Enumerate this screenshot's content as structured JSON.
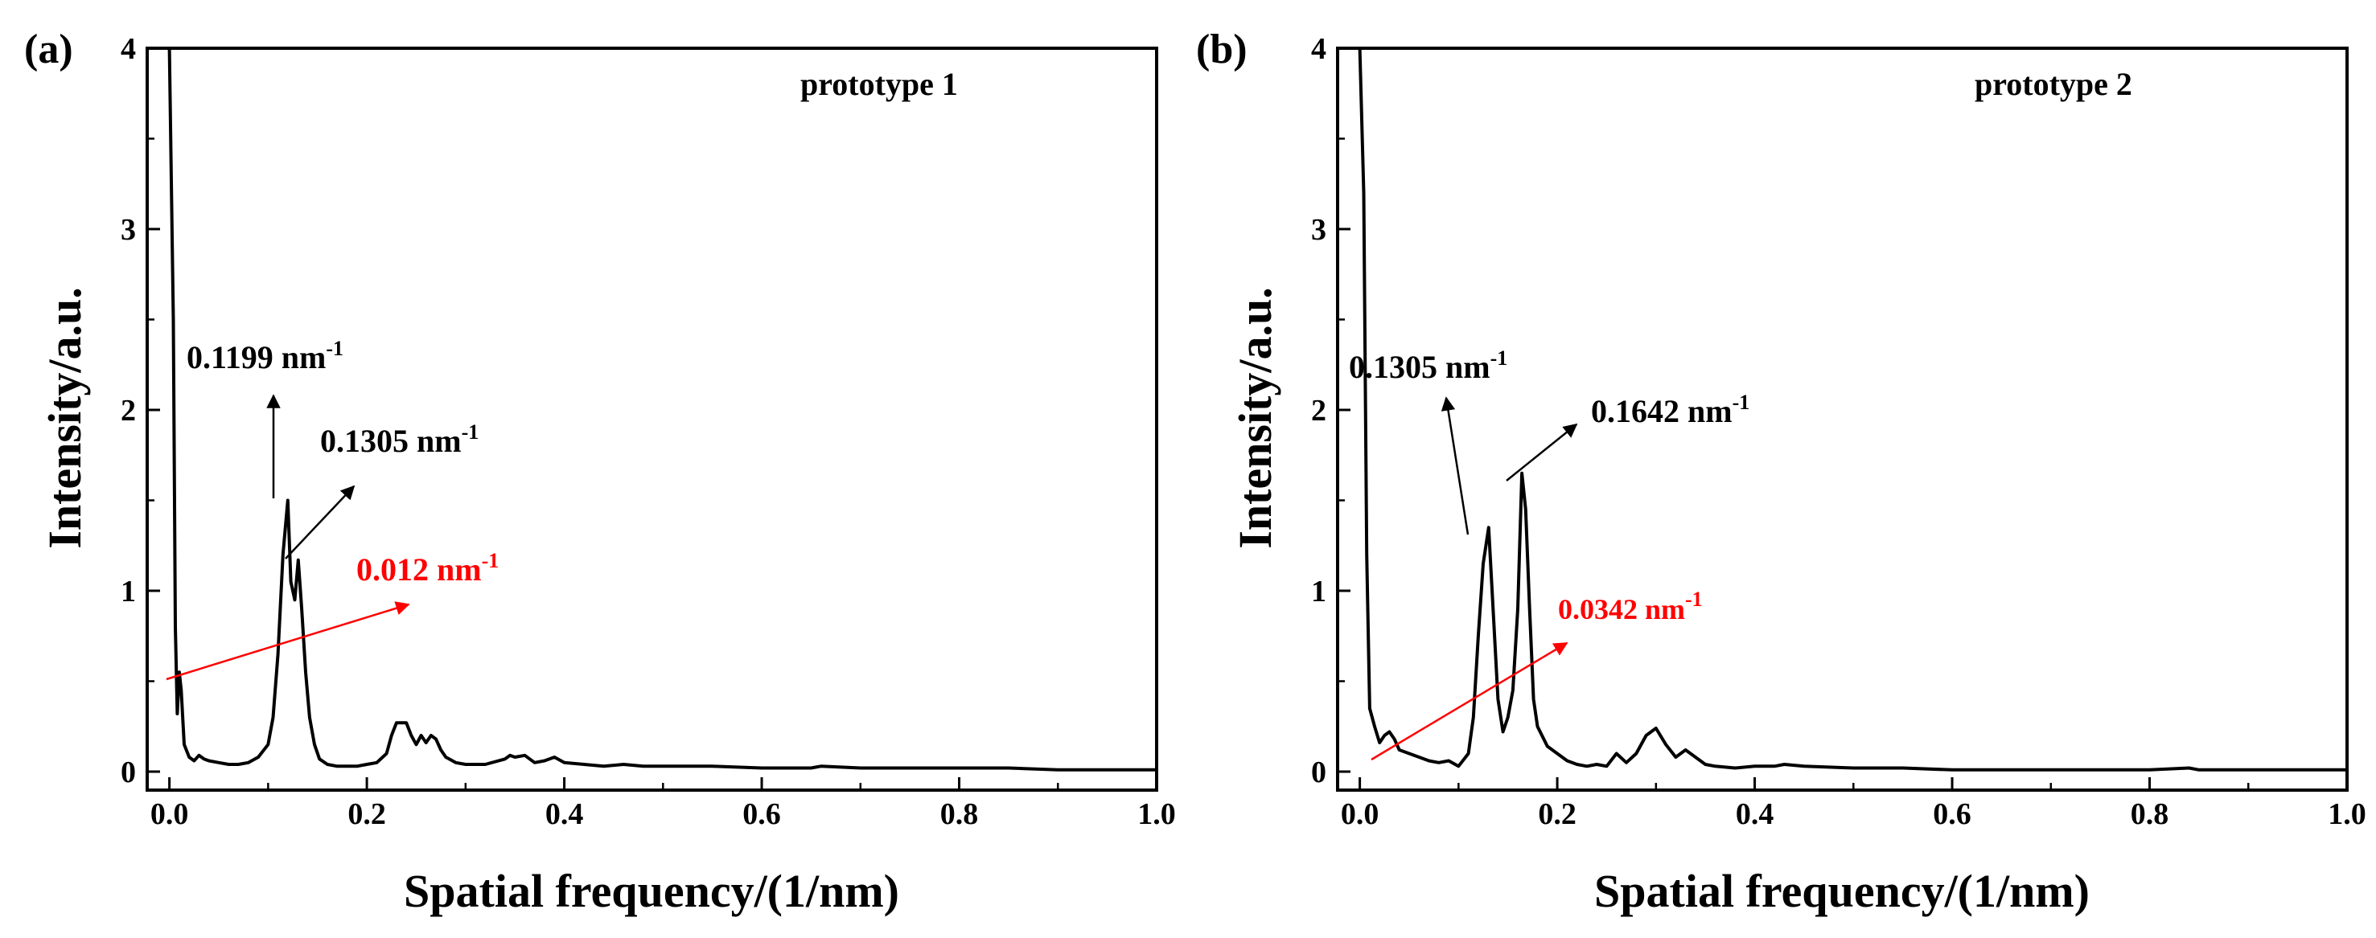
{
  "chart_data": [
    {
      "type": "line",
      "panel_label": "(a)",
      "legend": "prototype 1",
      "xlabel": "Spatial frequency/(1/nm)",
      "ylabel": "Intensity/a.u.",
      "xlim": [
        0,
        1.0
      ],
      "ylim": [
        0,
        4
      ],
      "xticks": [
        "0.0",
        "0.2",
        "0.4",
        "0.6",
        "0.8",
        "1.0"
      ],
      "yticks": [
        "0",
        "1",
        "2",
        "3",
        "4"
      ],
      "series": [
        {
          "name": "prototype 1",
          "x": [
            0.0,
            0.004,
            0.006,
            0.008,
            0.01,
            0.012,
            0.015,
            0.02,
            0.025,
            0.03,
            0.035,
            0.04,
            0.05,
            0.06,
            0.07,
            0.08,
            0.09,
            0.1,
            0.105,
            0.11,
            0.115,
            0.1199,
            0.123,
            0.127,
            0.1305,
            0.134,
            0.138,
            0.142,
            0.147,
            0.152,
            0.16,
            0.17,
            0.18,
            0.19,
            0.2,
            0.21,
            0.22,
            0.225,
            0.23,
            0.24,
            0.245,
            0.25,
            0.255,
            0.26,
            0.265,
            0.27,
            0.275,
            0.28,
            0.29,
            0.3,
            0.32,
            0.34,
            0.345,
            0.35,
            0.36,
            0.37,
            0.38,
            0.39,
            0.4,
            0.42,
            0.44,
            0.46,
            0.48,
            0.5,
            0.55,
            0.6,
            0.65,
            0.66,
            0.7,
            0.75,
            0.8,
            0.85,
            0.9,
            0.95,
            1.0
          ],
          "y": [
            4.0,
            2.5,
            0.8,
            0.32,
            0.55,
            0.45,
            0.15,
            0.08,
            0.06,
            0.09,
            0.07,
            0.06,
            0.05,
            0.04,
            0.04,
            0.05,
            0.08,
            0.15,
            0.3,
            0.65,
            1.2,
            1.5,
            1.05,
            0.95,
            1.17,
            0.9,
            0.55,
            0.3,
            0.15,
            0.07,
            0.04,
            0.03,
            0.03,
            0.03,
            0.04,
            0.05,
            0.1,
            0.2,
            0.27,
            0.27,
            0.2,
            0.15,
            0.2,
            0.16,
            0.2,
            0.18,
            0.12,
            0.08,
            0.05,
            0.04,
            0.04,
            0.07,
            0.09,
            0.08,
            0.09,
            0.05,
            0.06,
            0.08,
            0.05,
            0.04,
            0.03,
            0.04,
            0.03,
            0.03,
            0.03,
            0.02,
            0.02,
            0.03,
            0.02,
            0.02,
            0.02,
            0.02,
            0.01,
            0.01,
            0.01
          ]
        }
      ],
      "annotations": [
        {
          "text": "0.1199 nm",
          "sup": "-1",
          "color": "#000000"
        },
        {
          "text": "0.1305 nm",
          "sup": "-1",
          "color": "#000000"
        },
        {
          "text": "0.012 nm",
          "sup": "-1",
          "color": "#ff0000"
        }
      ]
    },
    {
      "type": "line",
      "panel_label": "(b)",
      "legend": "prototype 2",
      "xlabel": "Spatial frequency/(1/nm)",
      "ylabel": "Intensity/a.u.",
      "xlim": [
        0,
        1.0
      ],
      "ylim": [
        0,
        4
      ],
      "xticks": [
        "0.0",
        "0.2",
        "0.4",
        "0.6",
        "0.8",
        "1.0"
      ],
      "yticks": [
        "0",
        "1",
        "2",
        "3",
        "4"
      ],
      "series": [
        {
          "name": "prototype 2",
          "x": [
            0.0,
            0.004,
            0.007,
            0.01,
            0.015,
            0.02,
            0.025,
            0.03,
            0.035,
            0.04,
            0.05,
            0.06,
            0.07,
            0.08,
            0.09,
            0.1,
            0.11,
            0.115,
            0.12,
            0.125,
            0.1305,
            0.135,
            0.14,
            0.145,
            0.15,
            0.155,
            0.16,
            0.1642,
            0.168,
            0.172,
            0.176,
            0.18,
            0.19,
            0.2,
            0.21,
            0.22,
            0.23,
            0.24,
            0.25,
            0.26,
            0.27,
            0.28,
            0.29,
            0.3,
            0.31,
            0.32,
            0.33,
            0.34,
            0.35,
            0.36,
            0.38,
            0.4,
            0.42,
            0.43,
            0.45,
            0.5,
            0.55,
            0.6,
            0.65,
            0.7,
            0.75,
            0.8,
            0.84,
            0.85,
            0.9,
            0.95,
            1.0
          ],
          "y": [
            4.0,
            3.2,
            1.2,
            0.35,
            0.25,
            0.16,
            0.2,
            0.22,
            0.18,
            0.12,
            0.1,
            0.08,
            0.06,
            0.05,
            0.06,
            0.03,
            0.1,
            0.3,
            0.75,
            1.15,
            1.35,
            0.9,
            0.4,
            0.22,
            0.3,
            0.45,
            0.9,
            1.65,
            1.45,
            0.9,
            0.4,
            0.25,
            0.14,
            0.1,
            0.06,
            0.04,
            0.03,
            0.04,
            0.03,
            0.1,
            0.05,
            0.1,
            0.2,
            0.24,
            0.15,
            0.08,
            0.12,
            0.08,
            0.04,
            0.03,
            0.02,
            0.03,
            0.03,
            0.04,
            0.03,
            0.02,
            0.02,
            0.01,
            0.01,
            0.01,
            0.01,
            0.01,
            0.02,
            0.01,
            0.01,
            0.01,
            0.01
          ]
        }
      ],
      "annotations": [
        {
          "text": "0.1305 nm",
          "sup": "-1",
          "color": "#000000"
        },
        {
          "text": "0.1642 nm",
          "sup": "-1",
          "color": "#000000"
        },
        {
          "text": "0.0342 nm",
          "sup": "-1",
          "color": "#ff0000"
        }
      ]
    }
  ]
}
